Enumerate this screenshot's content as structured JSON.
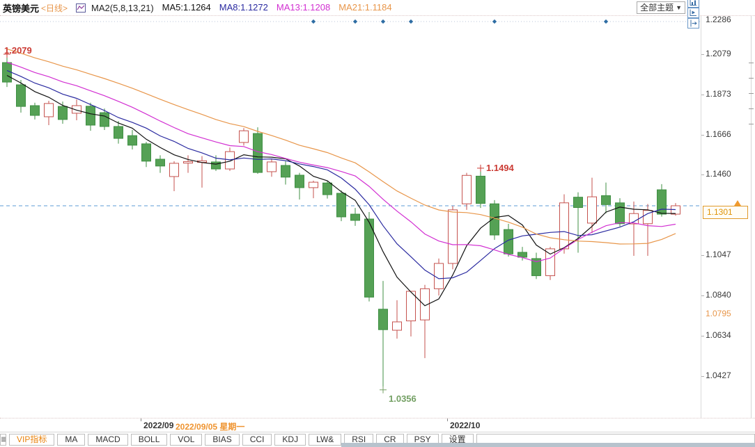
{
  "header": {
    "symbol": "英镑美元",
    "period": "<日线>",
    "ma_group_label": "MA2(5,8,13,21)",
    "ma_values": [
      {
        "text": "MA5:1.1264",
        "color": "#111111"
      },
      {
        "text": "MA8:1.1272",
        "color": "#2a2aa0"
      },
      {
        "text": "MA13:1.1208",
        "color": "#d22fd2"
      },
      {
        "text": "MA21:1.1184",
        "color": "#e8964a"
      }
    ],
    "theme_select_label": "全部主题",
    "dropdown_arrow": "▼",
    "tool_buttons": [
      "move-crosshair",
      "fit-chart",
      "scroll-forward",
      "jump-latest"
    ]
  },
  "axis": {
    "price_levels": [
      {
        "text": "1.2286",
        "value": 1.2286
      },
      {
        "text": "1.2079",
        "value": 1.2079
      },
      {
        "text": "1.1873",
        "value": 1.1873
      },
      {
        "text": "1.1666",
        "value": 1.1666
      },
      {
        "text": "1.1460",
        "value": 1.146
      },
      {
        "text": "1.1047",
        "value": 1.1047
      },
      {
        "text": "1.0840",
        "value": 1.084
      },
      {
        "text": "1.0634",
        "value": 1.0634
      },
      {
        "text": "1.0427",
        "value": 1.0427
      }
    ],
    "current_price": {
      "text": "1.1301",
      "value": 1.1301
    },
    "secondary_price": {
      "text": "1.0795",
      "value": 1.0795
    }
  },
  "xaxis": {
    "month_labels": [
      {
        "text": "2022/09",
        "index": 10
      },
      {
        "text": "2022/10",
        "index": 32
      }
    ],
    "selected_date": "2022/09/05 星期一"
  },
  "toolbar": {
    "stub_icon": "≣",
    "items": [
      {
        "label": "VIP指标",
        "active": true
      },
      {
        "label": "MA"
      },
      {
        "label": "MACD"
      },
      {
        "label": "BOLL"
      },
      {
        "label": "VOL"
      },
      {
        "label": "BIAS"
      },
      {
        "label": "CCI"
      },
      {
        "label": "KDJ"
      },
      {
        "label": "LW&"
      },
      {
        "label": "RSI"
      },
      {
        "label": "CR"
      },
      {
        "label": "PSY"
      },
      {
        "label": "设置"
      }
    ]
  },
  "chart_data": {
    "type": "candlestick",
    "title": "英镑美元 <日线>",
    "ylim": [
      1.0209,
      1.2293
    ],
    "grid": false,
    "up_color": "#c5524e",
    "down_color": "#55a155",
    "down_stroke": "#3f8f43",
    "marker_track_color": "#b9c6da",
    "ma": {
      "periods": [
        5,
        8,
        13,
        21
      ],
      "colors": [
        "#111111",
        "#2a2aa0",
        "#d22fd2",
        "#e8964a"
      ]
    },
    "price_line": {
      "value": 1.1301,
      "color": "#5b9bd5"
    },
    "event_marker_indices": [
      22,
      25,
      27,
      29,
      35,
      43
    ],
    "event_marker_color": "#2e6da4",
    "annotations": [
      {
        "text": "1.2079",
        "index": 0,
        "side": "high",
        "color": "#cb3a33"
      },
      {
        "text": "1.1494",
        "index": 34,
        "side": "high",
        "color": "#cb3a33"
      },
      {
        "text": "1.0356",
        "index": 27,
        "side": "low",
        "color": "#74a064"
      }
    ],
    "candles": [
      [
        1.2036,
        1.2079,
        1.1911,
        1.1936
      ],
      [
        1.1922,
        1.1947,
        1.1779,
        1.1811
      ],
      [
        1.1815,
        1.183,
        1.1744,
        1.1765
      ],
      [
        1.1758,
        1.184,
        1.1715,
        1.1826
      ],
      [
        1.1811,
        1.1836,
        1.1722,
        1.1744
      ],
      [
        1.1776,
        1.1847,
        1.174,
        1.1815
      ],
      [
        1.1812,
        1.183,
        1.1686,
        1.1715
      ],
      [
        1.1779,
        1.18,
        1.169,
        1.1708
      ],
      [
        1.1708,
        1.1736,
        1.162,
        1.1647
      ],
      [
        1.1661,
        1.169,
        1.159,
        1.1612
      ],
      [
        1.1619,
        1.1629,
        1.15,
        1.153
      ],
      [
        1.154,
        1.156,
        1.147,
        1.1505
      ],
      [
        1.1451,
        1.153,
        1.1376,
        1.1519
      ],
      [
        1.152,
        1.156,
        1.147,
        1.1528
      ],
      [
        1.1524,
        1.1556,
        1.1394,
        1.1532
      ],
      [
        1.1526,
        1.156,
        1.148,
        1.149
      ],
      [
        1.149,
        1.16,
        1.148,
        1.1579
      ],
      [
        1.1626,
        1.17,
        1.161,
        1.1686
      ],
      [
        1.1672,
        1.1704,
        1.1465,
        1.1472
      ],
      [
        1.1476,
        1.154,
        1.145,
        1.1526
      ],
      [
        1.1508,
        1.153,
        1.141,
        1.1448
      ],
      [
        1.1458,
        1.147,
        1.1333,
        1.1394
      ],
      [
        1.1394,
        1.143,
        1.134,
        1.1422
      ],
      [
        1.1418,
        1.143,
        1.1338,
        1.1358
      ],
      [
        1.1365,
        1.138,
        1.1222,
        1.1244
      ],
      [
        1.1258,
        1.129,
        1.1198,
        1.1226
      ],
      [
        1.1233,
        1.1269,
        1.081,
        1.0832
      ],
      [
        1.077,
        1.0915,
        1.0356,
        1.0665
      ],
      [
        1.0662,
        1.0816,
        1.0619,
        1.0705
      ],
      [
        1.071,
        1.084,
        1.063,
        1.0862
      ],
      [
        1.0715,
        1.0895,
        1.0519,
        1.0875
      ],
      [
        1.0875,
        1.103,
        1.084,
        1.1005
      ],
      [
        1.1005,
        1.13,
        1.0975,
        1.128
      ],
      [
        1.1311,
        1.147,
        1.128,
        1.1457
      ],
      [
        1.1453,
        1.1494,
        1.129,
        1.1313
      ],
      [
        1.1311,
        1.133,
        1.1126,
        1.1151
      ],
      [
        1.1179,
        1.1208,
        1.104,
        1.1054
      ],
      [
        1.1062,
        1.109,
        1.102,
        1.1037
      ],
      [
        1.103,
        1.106,
        1.0925,
        1.0942
      ],
      [
        1.0942,
        1.109,
        1.092,
        1.108
      ],
      [
        1.108,
        1.136,
        1.1055,
        1.1316
      ],
      [
        1.1345,
        1.137,
        1.106,
        1.1292
      ],
      [
        1.1212,
        1.1445,
        1.116,
        1.1347
      ],
      [
        1.1353,
        1.142,
        1.1262,
        1.1307
      ],
      [
        1.1316,
        1.134,
        1.1195,
        1.1209
      ],
      [
        1.1208,
        1.1323,
        1.1044,
        1.1261
      ],
      [
        1.1209,
        1.131,
        1.1044,
        1.1277
      ],
      [
        1.1383,
        1.1412,
        1.1245,
        1.1258
      ],
      [
        1.1258,
        1.1315,
        1.125,
        1.1301
      ]
    ]
  }
}
